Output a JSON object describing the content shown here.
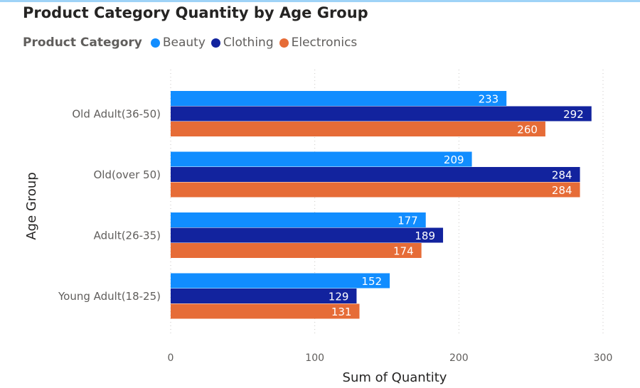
{
  "title": "Product Category Quantity by Age Group",
  "legend": {
    "title": "Product Category",
    "items": [
      {
        "label": "Beauty",
        "color": "#118DFF"
      },
      {
        "label": "Clothing",
        "color": "#12239E"
      },
      {
        "label": "Electronics",
        "color": "#E66C37"
      }
    ]
  },
  "chart_data": {
    "type": "bar",
    "orientation": "horizontal",
    "title": "Product Category Quantity by Age Group",
    "xlabel": "Sum of Quantity",
    "ylabel": "Age Group",
    "categories": [
      "Old Adult(36-50)",
      "Old(over 50)",
      "Adult(26-35)",
      "Young Adult(18-25)"
    ],
    "series": [
      {
        "name": "Beauty",
        "color": "#118DFF",
        "values": [
          233,
          209,
          177,
          152
        ]
      },
      {
        "name": "Clothing",
        "color": "#12239E",
        "values": [
          292,
          284,
          189,
          129
        ]
      },
      {
        "name": "Electronics",
        "color": "#E66C37",
        "values": [
          260,
          284,
          174,
          131
        ]
      }
    ],
    "xlim": [
      0,
      300
    ],
    "xticks": [
      "0",
      "100",
      "200",
      "300"
    ],
    "grid": true,
    "data_labels": true,
    "legend_position": "top-left"
  }
}
